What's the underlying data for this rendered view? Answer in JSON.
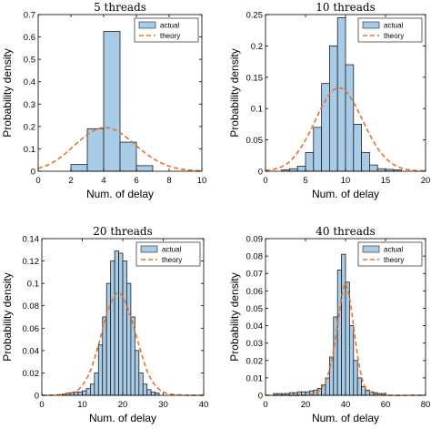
{
  "colors": {
    "bar_fill": "#a8cce8",
    "bar_edge": "#1f1f1f",
    "theory_line": "#e8702a",
    "axis": "#000000"
  },
  "legend": {
    "actual": "actual",
    "theory": "theory",
    "placement": "top-right"
  },
  "chart_data": [
    {
      "type": "bar",
      "title": "5 threads",
      "xlabel": "Num. of delay",
      "ylabel": "Probability density",
      "xlim": [
        0,
        10
      ],
      "ylim": [
        0,
        0.7
      ],
      "xticks": [
        "0",
        "2",
        "4",
        "6",
        "8",
        "10"
      ],
      "yticks": [
        "0",
        "0.1",
        "0.2",
        "0.3",
        "0.4",
        "0.5",
        "0.6",
        "0.7"
      ],
      "bin_width": 1,
      "bins": [
        {
          "x0": 2,
          "x1": 3,
          "value": 0.03
        },
        {
          "x0": 3,
          "x1": 4,
          "value": 0.19
        },
        {
          "x0": 4,
          "x1": 5,
          "value": 0.625
        },
        {
          "x0": 5,
          "x1": 6,
          "value": 0.13
        },
        {
          "x0": 6,
          "x1": 7,
          "value": 0.025
        }
      ],
      "theory": {
        "x": [
          0,
          0.5,
          1,
          1.5,
          2,
          2.5,
          3,
          3.5,
          4,
          4.5,
          5,
          5.5,
          6,
          6.5,
          7,
          7.5,
          8,
          8.5,
          9,
          9.5,
          10
        ],
        "y": [
          0.013,
          0.025,
          0.044,
          0.07,
          0.101,
          0.134,
          0.163,
          0.185,
          0.195,
          0.19,
          0.172,
          0.145,
          0.114,
          0.084,
          0.058,
          0.038,
          0.023,
          0.013,
          0.007,
          0.003,
          0.002
        ]
      }
    },
    {
      "type": "bar",
      "title": "10 threads",
      "xlabel": "Num. of delay",
      "ylabel": "Probability density",
      "xlim": [
        0,
        20
      ],
      "ylim": [
        0,
        0.25
      ],
      "xticks": [
        "0",
        "5",
        "10",
        "15",
        "20"
      ],
      "yticks": [
        "0",
        "0.05",
        "0.1",
        "0.15",
        "0.2",
        "0.25"
      ],
      "bin_width": 1,
      "bins": [
        {
          "x0": 2,
          "x1": 3,
          "value": 0.002
        },
        {
          "x0": 3,
          "x1": 4,
          "value": 0.004
        },
        {
          "x0": 4,
          "x1": 5,
          "value": 0.008
        },
        {
          "x0": 5,
          "x1": 6,
          "value": 0.03
        },
        {
          "x0": 6,
          "x1": 7,
          "value": 0.07
        },
        {
          "x0": 7,
          "x1": 8,
          "value": 0.14
        },
        {
          "x0": 8,
          "x1": 9,
          "value": 0.2
        },
        {
          "x0": 9,
          "x1": 10,
          "value": 0.245
        },
        {
          "x0": 10,
          "x1": 11,
          "value": 0.17
        },
        {
          "x0": 11,
          "x1": 12,
          "value": 0.075
        },
        {
          "x0": 12,
          "x1": 13,
          "value": 0.03
        },
        {
          "x0": 13,
          "x1": 14,
          "value": 0.01
        },
        {
          "x0": 14,
          "x1": 15,
          "value": 0.004
        },
        {
          "x0": 15,
          "x1": 16,
          "value": 0.003
        },
        {
          "x0": 16,
          "x1": 17,
          "value": 0.002
        }
      ],
      "theory": {
        "x": [
          0,
          1,
          2,
          3,
          4,
          5,
          6,
          7,
          8,
          9,
          10,
          11,
          12,
          13,
          14,
          15,
          16,
          17,
          18,
          19,
          20
        ],
        "y": [
          0.001,
          0.003,
          0.007,
          0.015,
          0.03,
          0.05,
          0.075,
          0.102,
          0.123,
          0.133,
          0.128,
          0.11,
          0.085,
          0.059,
          0.037,
          0.021,
          0.011,
          0.005,
          0.002,
          0.001,
          0.0005
        ]
      }
    },
    {
      "type": "bar",
      "title": "20 threads",
      "xlabel": "Num. of delay",
      "ylabel": "Probability density",
      "xlim": [
        0,
        40
      ],
      "ylim": [
        0,
        0.14
      ],
      "xticks": [
        "0",
        "10",
        "20",
        "30",
        "40"
      ],
      "yticks": [
        "0",
        "0.02",
        "0.04",
        "0.06",
        "0.08",
        "0.1",
        "0.12",
        "0.14"
      ],
      "bin_width": 1,
      "bins": [
        {
          "x0": 5,
          "x1": 6,
          "value": 0.001
        },
        {
          "x0": 6,
          "x1": 7,
          "value": 0.002
        },
        {
          "x0": 7,
          "x1": 8,
          "value": 0.002
        },
        {
          "x0": 8,
          "x1": 9,
          "value": 0.003
        },
        {
          "x0": 9,
          "x1": 10,
          "value": 0.003
        },
        {
          "x0": 10,
          "x1": 11,
          "value": 0.004
        },
        {
          "x0": 11,
          "x1": 12,
          "value": 0.006
        },
        {
          "x0": 12,
          "x1": 13,
          "value": 0.01
        },
        {
          "x0": 13,
          "x1": 14,
          "value": 0.02
        },
        {
          "x0": 14,
          "x1": 15,
          "value": 0.045
        },
        {
          "x0": 15,
          "x1": 16,
          "value": 0.07
        },
        {
          "x0": 16,
          "x1": 17,
          "value": 0.1
        },
        {
          "x0": 17,
          "x1": 18,
          "value": 0.12
        },
        {
          "x0": 18,
          "x1": 19,
          "value": 0.129
        },
        {
          "x0": 19,
          "x1": 20,
          "value": 0.127
        },
        {
          "x0": 20,
          "x1": 21,
          "value": 0.12
        },
        {
          "x0": 21,
          "x1": 22,
          "value": 0.1
        },
        {
          "x0": 22,
          "x1": 23,
          "value": 0.07
        },
        {
          "x0": 23,
          "x1": 24,
          "value": 0.04
        },
        {
          "x0": 24,
          "x1": 25,
          "value": 0.02
        },
        {
          "x0": 25,
          "x1": 26,
          "value": 0.01
        },
        {
          "x0": 26,
          "x1": 27,
          "value": 0.005
        },
        {
          "x0": 27,
          "x1": 28,
          "value": 0.003
        },
        {
          "x0": 28,
          "x1": 29,
          "value": 0.002
        }
      ],
      "theory": {
        "x": [
          0,
          4,
          8,
          10,
          12,
          14,
          16,
          18,
          19,
          20,
          22,
          24,
          26,
          28,
          30,
          32,
          36,
          40
        ],
        "y": [
          0.0,
          0.0005,
          0.003,
          0.009,
          0.022,
          0.045,
          0.072,
          0.089,
          0.091,
          0.088,
          0.07,
          0.045,
          0.022,
          0.009,
          0.003,
          0.001,
          0.0,
          0.0
        ]
      }
    },
    {
      "type": "bar",
      "title": "40 threads",
      "xlabel": "Num. of delay",
      "ylabel": "Probability density",
      "xlim": [
        0,
        80
      ],
      "ylim": [
        0,
        0.09
      ],
      "xticks": [
        "0",
        "20",
        "40",
        "60",
        "80"
      ],
      "yticks": [
        "0",
        "0.01",
        "0.02",
        "0.03",
        "0.04",
        "0.05",
        "0.06",
        "0.07",
        "0.08",
        "0.09"
      ],
      "bin_width": 2,
      "bins": [
        {
          "x0": 4,
          "x1": 6,
          "value": 0.001
        },
        {
          "x0": 6,
          "x1": 8,
          "value": 0.001
        },
        {
          "x0": 8,
          "x1": 10,
          "value": 0.001
        },
        {
          "x0": 10,
          "x1": 12,
          "value": 0.001
        },
        {
          "x0": 12,
          "x1": 14,
          "value": 0.0015
        },
        {
          "x0": 14,
          "x1": 16,
          "value": 0.0015
        },
        {
          "x0": 16,
          "x1": 18,
          "value": 0.002
        },
        {
          "x0": 18,
          "x1": 20,
          "value": 0.002
        },
        {
          "x0": 20,
          "x1": 22,
          "value": 0.002
        },
        {
          "x0": 22,
          "x1": 24,
          "value": 0.0025
        },
        {
          "x0": 24,
          "x1": 26,
          "value": 0.003
        },
        {
          "x0": 26,
          "x1": 28,
          "value": 0.004
        },
        {
          "x0": 28,
          "x1": 30,
          "value": 0.006
        },
        {
          "x0": 30,
          "x1": 32,
          "value": 0.01
        },
        {
          "x0": 32,
          "x1": 34,
          "value": 0.022
        },
        {
          "x0": 34,
          "x1": 36,
          "value": 0.045
        },
        {
          "x0": 36,
          "x1": 38,
          "value": 0.072
        },
        {
          "x0": 38,
          "x1": 40,
          "value": 0.081
        },
        {
          "x0": 40,
          "x1": 42,
          "value": 0.065
        },
        {
          "x0": 42,
          "x1": 44,
          "value": 0.04
        },
        {
          "x0": 44,
          "x1": 46,
          "value": 0.02
        },
        {
          "x0": 46,
          "x1": 48,
          "value": 0.01
        },
        {
          "x0": 48,
          "x1": 50,
          "value": 0.005
        },
        {
          "x0": 50,
          "x1": 52,
          "value": 0.003
        },
        {
          "x0": 52,
          "x1": 54,
          "value": 0.002
        },
        {
          "x0": 54,
          "x1": 56,
          "value": 0.0015
        },
        {
          "x0": 56,
          "x1": 58,
          "value": 0.001
        },
        {
          "x0": 58,
          "x1": 60,
          "value": 0.001
        }
      ],
      "theory": {
        "x": [
          0,
          20,
          26,
          30,
          33,
          36,
          38,
          39,
          40,
          42,
          44,
          46,
          48,
          50,
          54,
          60,
          80
        ],
        "y": [
          0.0,
          0.0,
          0.002,
          0.008,
          0.02,
          0.04,
          0.056,
          0.062,
          0.064,
          0.056,
          0.04,
          0.023,
          0.011,
          0.004,
          0.001,
          0.0,
          0.0
        ]
      }
    }
  ]
}
